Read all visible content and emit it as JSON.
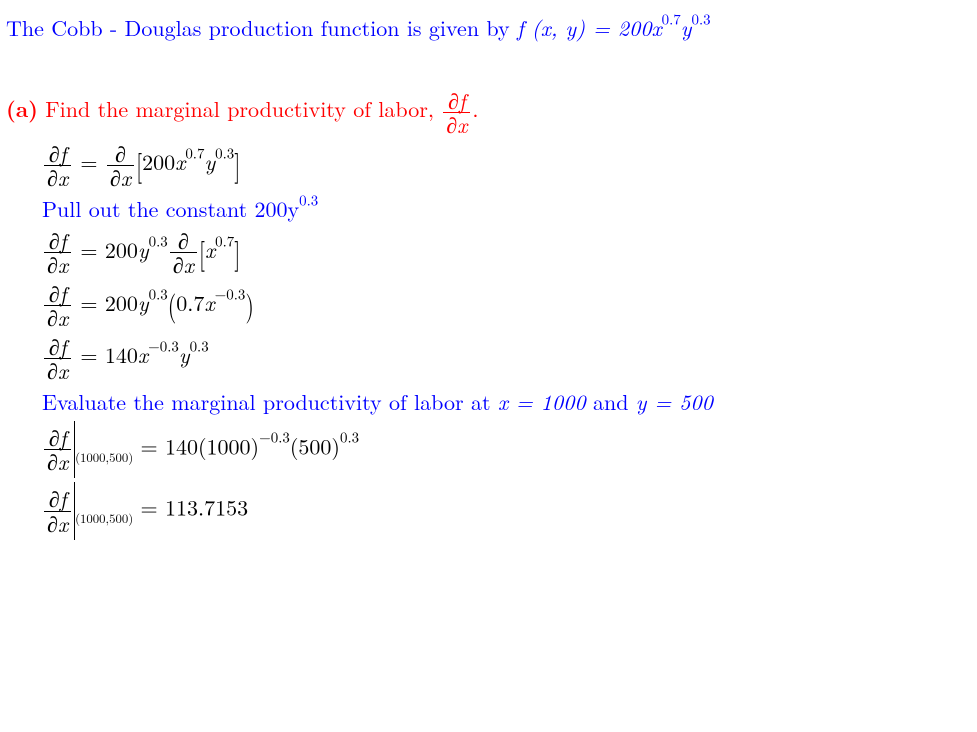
{
  "colors": {
    "blue": "#0000ff",
    "red": "#ff0000",
    "black": "#000000",
    "bg": "#ffffff"
  },
  "typography": {
    "family": "Latin Modern Roman / Computer Modern serif",
    "base_size_pt": 17,
    "exp_scale": 0.68
  },
  "intro": {
    "text_before_fn": "The Cobb - Douglas production function is given by ",
    "fn": "f (x, y) = 200x",
    "x_exp": "0.7",
    "y": "y",
    "y_exp": "0.3"
  },
  "part_a": {
    "label": "(a)",
    "prompt_before": "Find the marginal productivity of labor, ",
    "frac_num": "∂f",
    "frac_den": "∂x",
    "prompt_after": "."
  },
  "step1": {
    "lhs_num": "∂f",
    "lhs_den": "∂x",
    "eq": " = ",
    "rhs_frac_num": "∂",
    "rhs_frac_den": "∂x",
    "lbr": " [",
    "coeff": "200",
    "x": "x",
    "x_exp": "0.7",
    "y": "y",
    "y_exp": "0.3",
    "rbr": "]"
  },
  "note1": {
    "before": "Pull out the constant ",
    "val": "200y",
    "exp": "0.3"
  },
  "step2": {
    "lhs_num": "∂f",
    "lhs_den": "∂x",
    "eq": " = ",
    "coeff": "200",
    "y": "y",
    "y_exp": "0.3",
    "dfrac_num": "∂",
    "dfrac_den": "∂x",
    "lbr": " [",
    "x": "x",
    "x_exp": "0.7",
    "rbr": "]"
  },
  "step3": {
    "lhs_num": "∂f",
    "lhs_den": "∂x",
    "eq": " = ",
    "coeff": "200",
    "y": "y",
    "y_exp": "0.3",
    "lp": " (",
    "inner_coeff": "0.7",
    "x": "x",
    "x_exp": "−0.3",
    "rp": ")"
  },
  "step4": {
    "lhs_num": "∂f",
    "lhs_den": "∂x",
    "eq": " = ",
    "coeff": "140",
    "x": "x",
    "x_exp": "−0.3",
    "y": "y",
    "y_exp": "0.3"
  },
  "note2": {
    "before": "Evaluate the marginal productivity of labor at ",
    "x_eq": "x = 1000",
    "and": " and ",
    "y_eq": "y = 500"
  },
  "eval1": {
    "lhs_num": "∂f",
    "lhs_den": "∂x",
    "point": "(1000,500)",
    "eq": " = ",
    "coeff": "140",
    "a": "(1000)",
    "a_exp": "−0.3",
    "b": "(500)",
    "b_exp": "0.3"
  },
  "eval2": {
    "lhs_num": "∂f",
    "lhs_den": "∂x",
    "point": "(1000,500)",
    "eq": " = ",
    "value": "113.7153"
  }
}
